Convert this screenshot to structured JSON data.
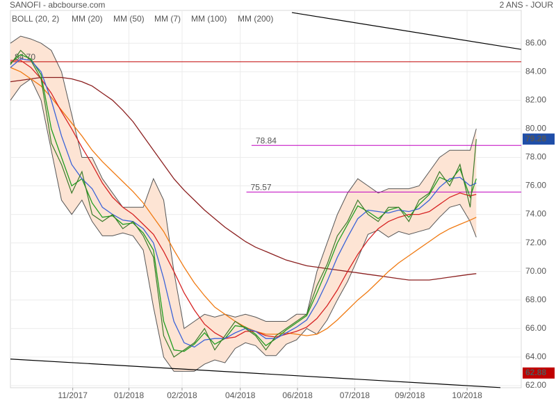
{
  "chart_data": {
    "type": "line",
    "title": "SANOFI - abcbourse.com",
    "subtitle": "2 ANS - JOUR",
    "x": [
      0,
      10,
      20,
      30,
      40,
      50,
      60,
      70,
      80,
      90,
      100,
      110,
      120,
      130,
      140,
      150,
      160,
      170,
      180,
      190,
      200,
      210,
      220,
      230,
      240,
      250,
      260,
      270,
      280,
      290,
      300,
      310,
      320,
      330,
      340,
      350,
      360,
      370,
      380,
      390,
      400,
      410,
      420,
      430,
      440,
      450,
      456
    ],
    "xlim": [
      0,
      500
    ],
    "xticks": [
      {
        "value": 61,
        "label": "11/2017"
      },
      {
        "value": 116,
        "label": "01/2018"
      },
      {
        "value": 168,
        "label": "02/2018"
      },
      {
        "value": 225,
        "label": "04/2018"
      },
      {
        "value": 281,
        "label": "06/2018"
      },
      {
        "value": 337,
        "label": "07/2018"
      },
      {
        "value": 391,
        "label": "09/2018"
      },
      {
        "value": 447,
        "label": "10/2018"
      }
    ],
    "ylim": [
      61.85,
      88.3
    ],
    "yticks": [
      {
        "value": 62,
        "label": "62.00"
      },
      {
        "value": 64,
        "label": "64.00"
      },
      {
        "value": 66,
        "label": "66.00"
      },
      {
        "value": 68,
        "label": "68.00"
      },
      {
        "value": 70,
        "label": "70.00"
      },
      {
        "value": 72,
        "label": "72.00"
      },
      {
        "value": 74,
        "label": "74.00"
      },
      {
        "value": 76,
        "label": "76.00"
      },
      {
        "value": 78,
        "label": "78.00"
      },
      {
        "value": 80,
        "label": "80.00"
      },
      {
        "value": 82,
        "label": "82.00"
      },
      {
        "value": 84,
        "label": "84.00"
      },
      {
        "value": 86,
        "label": "86.00"
      }
    ],
    "grid": true,
    "close": {
      "color": "#3b7a2a",
      "values": [
        84.5,
        85.5,
        84.8,
        83.5,
        79,
        77.5,
        75.5,
        77,
        74,
        73.5,
        74,
        73,
        73.5,
        72.5,
        71,
        65.5,
        64,
        64.5,
        65,
        66,
        64.5,
        65.5,
        66.5,
        66,
        65.5,
        64.5,
        65.5,
        66,
        66.5,
        67,
        69,
        70.5,
        72.5,
        73.5,
        75,
        74,
        73.5,
        74.5,
        74.5,
        73.5,
        75,
        75.5,
        77,
        76,
        77.5,
        74.5,
        79.28
      ]
    },
    "bollinger": {
      "name": "BOLL (20, 2)",
      "color": "#555555",
      "fill": "#fde4d4",
      "upper": [
        86,
        86.5,
        86.3,
        86,
        85.5,
        84,
        81,
        78,
        78,
        76.5,
        75.5,
        74.5,
        74.5,
        74.5,
        76.5,
        75,
        70,
        66,
        66.5,
        67,
        66.8,
        67,
        66.8,
        67,
        66.8,
        66.5,
        66.5,
        66.5,
        67,
        67,
        70,
        72,
        74,
        75.5,
        76.5,
        76,
        75.5,
        75.8,
        75.8,
        75.8,
        76,
        77,
        78,
        78.5,
        78.5,
        78.5,
        80
      ],
      "lower": [
        82,
        83,
        83.5,
        82,
        78.5,
        75,
        74,
        75,
        73.5,
        72.5,
        72.5,
        72.7,
        72.5,
        71.5,
        67.5,
        64,
        63,
        63,
        63,
        63.5,
        63.8,
        63.6,
        64.6,
        65,
        64.8,
        64.1,
        64.1,
        64.9,
        65.2,
        66,
        65.6,
        66.6,
        68,
        69.3,
        70.9,
        72.6,
        72.9,
        72.4,
        72.8,
        72.6,
        72.8,
        73,
        73.8,
        74.5,
        74.7,
        73.5,
        72.4
      ]
    },
    "series": [
      {
        "name": "MM (20)",
        "color": "#3a62d8",
        "values": [
          84.3,
          84.9,
          84.8,
          84,
          82,
          79.5,
          77.5,
          76.5,
          75.8,
          74.5,
          74,
          73.6,
          73.5,
          73,
          72,
          69.5,
          66.5,
          65,
          64.7,
          65.2,
          65.3,
          65.3,
          65.7,
          66,
          65.8,
          65.3,
          65.3,
          65.7,
          66.1,
          66.6,
          67.8,
          69.3,
          71,
          72.4,
          73.7,
          74.3,
          74.2,
          74.1,
          74.3,
          74.2,
          74.4,
          75,
          75.9,
          76.5,
          76.6,
          76,
          76.2
        ]
      },
      {
        "name": "MM (50)",
        "color": "#d62222",
        "values": [
          84.8,
          84.8,
          84.3,
          83.5,
          82.5,
          81.2,
          80,
          78.7,
          77.5,
          76.2,
          75.2,
          74.5,
          74,
          73.3,
          72.6,
          71.4,
          70,
          68.5,
          67.3,
          66.3,
          65.7,
          65.3,
          65.4,
          65.8,
          65.8,
          65.5,
          65.4,
          65.6,
          65.8,
          66.1,
          66.7,
          67.6,
          68.7,
          70,
          71.2,
          72.2,
          73,
          73.5,
          73.8,
          74,
          74,
          74.2,
          74.7,
          75.2,
          75.5,
          75.3,
          75.4
        ]
      },
      {
        "name": "MM (7)",
        "color": "#1f9e1f",
        "values": [
          84.6,
          85.2,
          84.9,
          83.8,
          80,
          78,
          76,
          76.5,
          74.8,
          73.8,
          73.9,
          73.3,
          73.4,
          72.7,
          71.5,
          66.5,
          64.5,
          64.4,
          64.9,
          65.7,
          64.9,
          65.3,
          66.2,
          66.1,
          65.6,
          64.8,
          65.3,
          65.9,
          66.4,
          66.9,
          68.5,
          70.2,
          72,
          73.3,
          74.6,
          74.2,
          73.7,
          74.3,
          74.5,
          73.8,
          74.7,
          75.4,
          76.6,
          76.3,
          77.2,
          75.2,
          76.5
        ]
      },
      {
        "name": "MM (100)",
        "color": "#f07a12",
        "values": [
          84.3,
          84,
          83.5,
          83,
          82.2,
          81.3,
          80.4,
          79.5,
          78.5,
          77.7,
          77,
          76.3,
          75.6,
          74.8,
          73.8,
          72.8,
          71.5,
          70.3,
          69.2,
          68.3,
          67.5,
          67,
          66.5,
          66.1,
          65.8,
          65.6,
          65.6,
          65.7,
          65.6,
          65.5,
          65.6,
          66,
          66.6,
          67.3,
          68,
          68.6,
          69.3,
          70,
          70.6,
          71.1,
          71.6,
          72.1,
          72.6,
          73,
          73.3,
          73.6,
          73.8
        ]
      },
      {
        "name": "MM (200)",
        "color": "#8b1f1f",
        "values": [
          83.3,
          83.4,
          83.5,
          83.6,
          83.6,
          83.6,
          83.5,
          83.3,
          83,
          82.5,
          82,
          81.3,
          80.5,
          79.5,
          78.5,
          77.5,
          76.5,
          75.7,
          75,
          74.3,
          73.7,
          73.1,
          72.6,
          72.1,
          71.7,
          71.4,
          71.1,
          70.8,
          70.6,
          70.4,
          70.3,
          70.2,
          70.1,
          70,
          69.9,
          69.8,
          69.7,
          69.6,
          69.5,
          69.4,
          69.4,
          69.4,
          69.5,
          69.6,
          69.7,
          69.8,
          69.85
        ]
      }
    ],
    "levels": [
      {
        "value": 84.7,
        "label": "84.70",
        "color": "#c00000",
        "x_start": 0
      },
      {
        "value": 78.84,
        "label": "78.84",
        "color": "#c000c0",
        "x_start": 236
      },
      {
        "value": 75.57,
        "label": "75.57",
        "color": "#c000c0",
        "x_start": 231
      }
    ],
    "trendlines": [
      {
        "x": [
          275.5,
          500
        ],
        "y": [
          88.15,
          85.57
        ],
        "color": "#000000"
      },
      {
        "x": [
          0,
          479.6
        ],
        "y": [
          63.86,
          61.86
        ],
        "color": "#000000"
      }
    ],
    "price_labels": [
      {
        "value": 79.28,
        "label": "79.28",
        "color": "#1f4ea8"
      },
      {
        "value": 62.88,
        "label": "62.88",
        "color": "#c00000"
      }
    ]
  }
}
